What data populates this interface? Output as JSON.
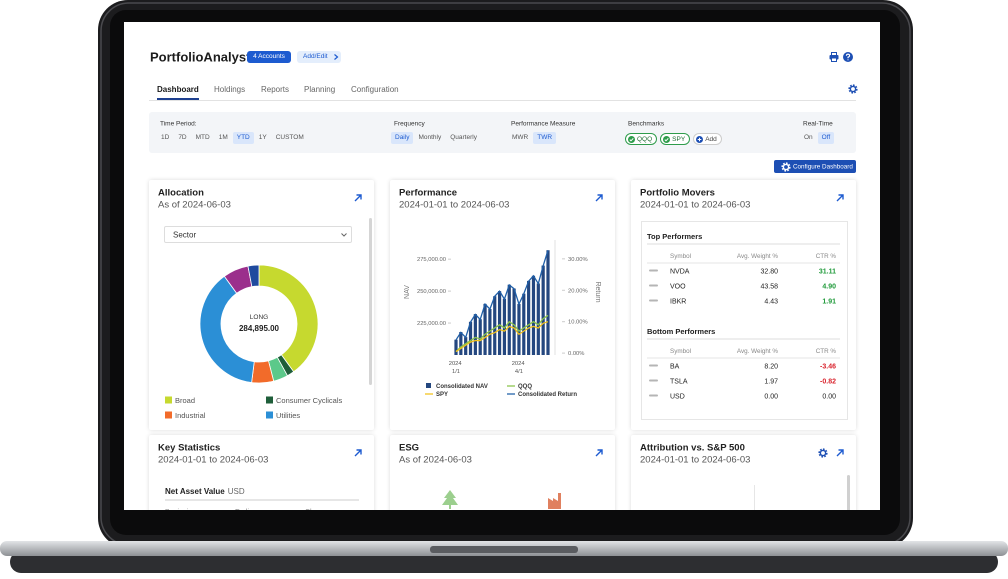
{
  "header": {
    "brand": "PortfolioAnalyst",
    "accounts_button": "4 Accounts",
    "add_edit_button": "Add/Edit"
  },
  "tabs": [
    {
      "label": "Dashboard",
      "active": true
    },
    {
      "label": "Holdings",
      "active": false
    },
    {
      "label": "Reports",
      "active": false
    },
    {
      "label": "Planning",
      "active": false
    },
    {
      "label": "Configuration",
      "active": false
    }
  ],
  "filters": [
    {
      "label": "Time Period:",
      "options": [
        {
          "label": "1D",
          "active": false
        },
        {
          "label": "7D",
          "active": false
        },
        {
          "label": "MTD",
          "active": false
        },
        {
          "label": "1M",
          "active": false
        },
        {
          "label": "YTD",
          "active": true
        },
        {
          "label": "1Y",
          "active": false
        },
        {
          "label": "CUSTOM",
          "active": false
        }
      ]
    },
    {
      "label": "Frequency",
      "options": [
        {
          "label": "Daily",
          "active": true
        },
        {
          "label": "Monthly",
          "active": false
        },
        {
          "label": "Quarterly",
          "active": false
        }
      ]
    },
    {
      "label": "Performance Measure",
      "options": [
        {
          "label": "MWR",
          "active": false
        },
        {
          "label": "TWR",
          "active": true
        }
      ]
    },
    {
      "label": "Benchmarks",
      "options": [
        {
          "label": "QQQ",
          "active": true
        },
        {
          "label": "SPY",
          "active": true
        },
        {
          "label": "Add",
          "active": false
        }
      ]
    },
    {
      "label": "Real-Time",
      "options": [
        {
          "label": "On",
          "active": false
        },
        {
          "label": "Off",
          "active": true
        }
      ]
    }
  ],
  "configure_button": "Configure Dashboard",
  "allocation": {
    "title": "Allocation",
    "subtitle": "As of 2024-06-03",
    "dropdown": "Sector",
    "chart_data": {
      "type": "pie",
      "donut": true,
      "center_label": "LONG",
      "center_value": "284,895.00",
      "categories": [
        "Broad",
        "Consumer Cyclicals",
        null,
        "Industrial",
        "Utilities",
        null,
        null
      ],
      "values": [
        40,
        2,
        4,
        6,
        38,
        7,
        3
      ],
      "colors": [
        "#c6d92f",
        "#1f5e3a",
        "#5cc98a",
        "#f26b2a",
        "#2b8fd6",
        "#9b2f8c",
        "#1f4a9e"
      ]
    }
  },
  "performance": {
    "title": "Performance",
    "subtitle": "2024-01-01 to 2024-06-03",
    "chart_data": {
      "type": "combo",
      "ylabel": "NAV",
      "y2label": "Return",
      "categories": [
        "2024 1/1",
        null,
        null,
        null,
        null,
        null,
        null,
        null,
        null,
        null,
        null,
        null,
        null,
        "2024 4/1",
        null,
        null,
        null,
        null,
        null,
        null
      ],
      "ylim": [
        200000,
        290000
      ],
      "yticks": [
        {
          "value": 225000,
          "label": "225,000.00"
        },
        {
          "value": 250000,
          "label": "250,000.00"
        },
        {
          "value": 275000,
          "label": "275,000.00"
        }
      ],
      "y2lim": [
        -0.6,
        36
      ],
      "y2ticks": [
        {
          "value": 0,
          "label": "0.00%"
        },
        {
          "value": 10,
          "label": "10.00%"
        },
        {
          "value": 20,
          "label": "20.00%"
        },
        {
          "value": 30,
          "label": "30.00%"
        }
      ],
      "series": [
        {
          "name": "Consolidated NAV",
          "type": "bar",
          "color": "#24477f",
          "values": [
            212000,
            218000,
            214000,
            226000,
            232000,
            228000,
            240000,
            236000,
            246000,
            250000,
            244000,
            255000,
            252000,
            240000,
            248000,
            258000,
            262000,
            256000,
            270000,
            282000
          ]
        },
        {
          "name": "QQQ",
          "type": "line",
          "axis": "y2",
          "color": "#8bc34a",
          "values": [
            0.5,
            2,
            3,
            4,
            5,
            4.5,
            6,
            7,
            8,
            9,
            8,
            10,
            9,
            7,
            8,
            9,
            10,
            9,
            11,
            12
          ]
        },
        {
          "name": "SPY",
          "type": "line",
          "axis": "y2",
          "color": "#f2c21b",
          "values": [
            0.5,
            1.5,
            2.5,
            3.5,
            4,
            4,
            5,
            6,
            6.5,
            7.5,
            7,
            8.5,
            8,
            6,
            7,
            8,
            8.5,
            8,
            9.5,
            10
          ]
        },
        {
          "name": "Consolidated Return",
          "type": "line",
          "axis": "y2",
          "color": "#1f5fa8",
          "values": [
            4.2,
            6.6,
            5,
            9.9,
            12.3,
            10.7,
            15.6,
            14,
            18.1,
            19.7,
            17.2,
            21.7,
            20.5,
            15.6,
            18.9,
            22.9,
            24.6,
            22.1,
            27.8,
            32.7
          ]
        }
      ]
    }
  },
  "movers": {
    "title": "Portfolio Movers",
    "subtitle": "2024-01-01 to 2024-06-03",
    "top": {
      "title": "Top Performers",
      "columns": [
        "Symbol",
        "Avg. Weight %",
        "CTR %"
      ],
      "rows": [
        [
          "NVDA",
          "32.80",
          "31.11"
        ],
        [
          "VOO",
          "43.58",
          "4.90"
        ],
        [
          "IBKR",
          "4.43",
          "1.91"
        ]
      ]
    },
    "bottom": {
      "title": "Bottom Performers",
      "columns": [
        "Symbol",
        "Avg. Weight %",
        "CTR %"
      ],
      "rows": [
        [
          "BA",
          "8.20",
          "-3.46"
        ],
        [
          "TSLA",
          "1.97",
          "-0.82"
        ],
        [
          "USD",
          "0.00",
          "0.00"
        ]
      ]
    }
  },
  "key_statistics": {
    "title": "Key Statistics",
    "subtitle": "2024-01-01 to 2024-06-03",
    "nav_label": "Net Asset Value",
    "currency": "USD",
    "columns": [
      "Beginning",
      "Ending",
      "Change"
    ]
  },
  "esg": {
    "title": "ESG",
    "subtitle": "As of 2024-06-03"
  },
  "attribution": {
    "title": "Attribution vs. S&P 500",
    "subtitle": "2024-01-01 to 2024-06-03"
  }
}
